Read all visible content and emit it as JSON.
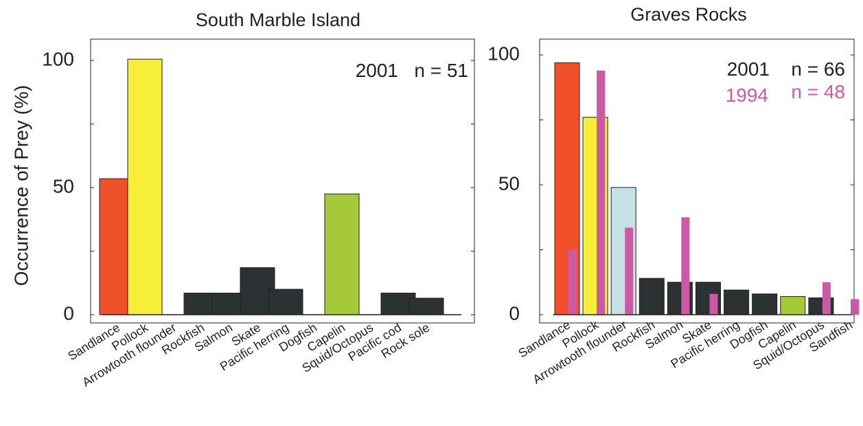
{
  "colors": {
    "dark": "#2c3133",
    "sandlance": "#f0502a",
    "pollock": "#f7ee3a",
    "capelin": "#a6c93a",
    "arrowtooth": "#c4e2e6",
    "year_1994": "#cc59a6",
    "axis": "#231f20"
  },
  "chart_data": [
    {
      "type": "bar",
      "title": "South Marble Island",
      "ylabel": "Occurrence of Prey (%)",
      "xlabel": "",
      "ylim": [
        0,
        100
      ],
      "yticks": [
        0,
        50,
        100
      ],
      "grid": false,
      "categories": [
        "Sandlance",
        "Pollock",
        "Arrowtooth flounder",
        "Rockfish",
        "Salmon",
        "Skate",
        "Pacific herring",
        "Dogfish",
        "Capelin",
        "Squid/Octopus",
        "Pacific cod",
        "Rock sole"
      ],
      "series": [
        {
          "name": "2001",
          "values": [
            53.5,
            100.5,
            0,
            8.5,
            8.5,
            18.5,
            10,
            0,
            47.5,
            0,
            8.5,
            6.5
          ],
          "colors": [
            "#f0502a",
            "#f7ee3a",
            "#2c3133",
            "#2c3133",
            "#2c3133",
            "#2c3133",
            "#2c3133",
            "#2c3133",
            "#a6c93a",
            "#2c3133",
            "#2c3133",
            "#2c3133"
          ]
        }
      ],
      "annotations": [
        {
          "year": "2001",
          "n": "n = 51",
          "color": "#231f20"
        }
      ]
    },
    {
      "type": "bar",
      "title": "Graves Rocks",
      "ylabel": "",
      "xlabel": "",
      "ylim": [
        0,
        100
      ],
      "yticks": [
        0,
        50,
        100
      ],
      "grid": false,
      "categories": [
        "Sandlance",
        "Pollock",
        "Arrowtooth flounder",
        "Rockfish",
        "Salmon",
        "Skate",
        "Pacific herring",
        "Dogfish",
        "Capelin",
        "Squid/Octopus",
        "Sandfish"
      ],
      "series": [
        {
          "name": "2001",
          "values": [
            97,
            76,
            49,
            14,
            12.5,
            12.5,
            9.5,
            8,
            7,
            6.5,
            0
          ],
          "colors": [
            "#f0502a",
            "#f7ee3a",
            "#c4e2e6",
            "#2c3133",
            "#2c3133",
            "#2c3133",
            "#2c3133",
            "#2c3133",
            "#a6c93a",
            "#2c3133",
            "#2c3133"
          ]
        },
        {
          "name": "1994",
          "values": [
            25,
            94,
            33.5,
            0,
            37.5,
            8,
            0,
            0,
            0,
            12.5,
            6
          ],
          "colors": [
            "#cc59a6"
          ]
        }
      ],
      "annotations": [
        {
          "year": "2001",
          "n": "n = 66",
          "color": "#231f20"
        },
        {
          "year": "1994",
          "n": "n = 48",
          "color": "#cc59a6"
        }
      ]
    }
  ]
}
